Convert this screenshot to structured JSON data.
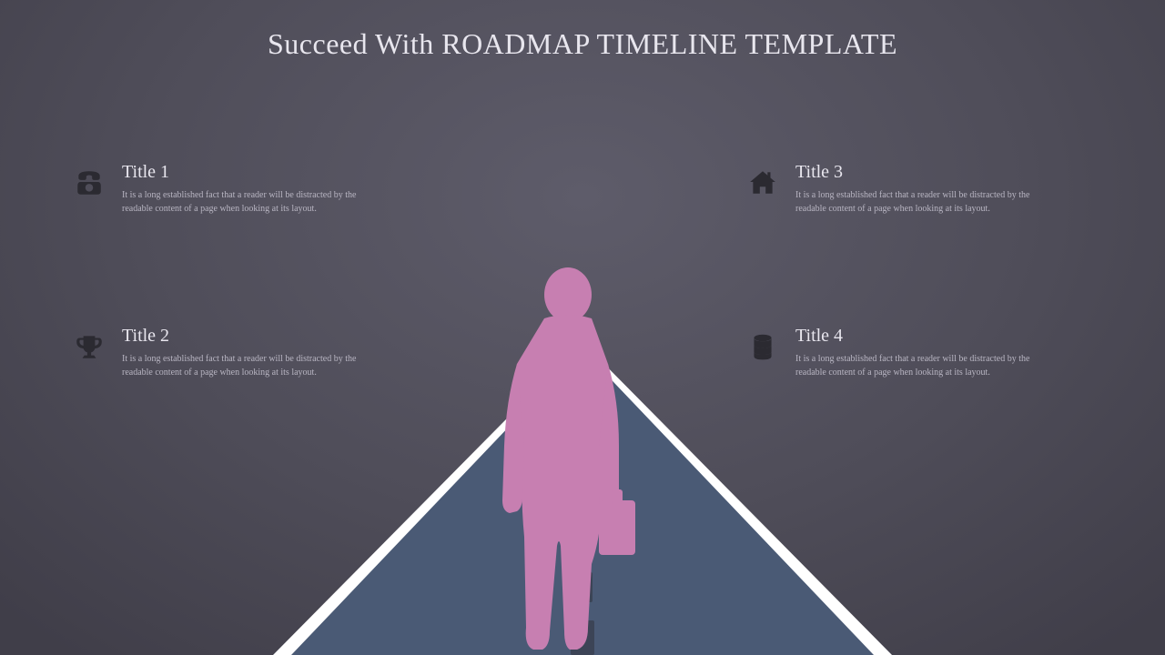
{
  "slide": {
    "title": "Succeed With ROADMAP TIMELINE TEMPLATE",
    "background": {
      "center": "#5e5c6a",
      "mid": "#4f4d59",
      "edge": "#403e49"
    },
    "title_color": "#e8e6ee",
    "title_fontsize": 32
  },
  "road": {
    "fill": "#4a5a75",
    "edge_color": "#ffffff",
    "dash_color": "#3c4456",
    "dash_count": 6
  },
  "silhouette": {
    "fill": "#c77fb1"
  },
  "icons": {
    "fill": "#2b2a31"
  },
  "items": [
    {
      "icon": "phone",
      "title": "Title 1",
      "desc": "It is a long established fact that a reader will be distracted by the readable content of a page when looking at its layout."
    },
    {
      "icon": "trophy",
      "title": "Title 2",
      "desc": "It is a long established fact that a reader will be distracted by the readable content of a page when looking at its layout."
    },
    {
      "icon": "home",
      "title": "Title 3",
      "desc": "It is a long established fact that a reader will be distracted by the readable content of a page when looking at its layout."
    },
    {
      "icon": "database",
      "title": "Title 4",
      "desc": "It is a long established fact that a reader will be distracted by the readable content of a page when looking at its layout."
    }
  ],
  "typography": {
    "item_title_fontsize": 20,
    "item_title_color": "#e8e6ee",
    "item_desc_fontsize": 10,
    "item_desc_color": "#b8b5c2",
    "font_family": "Georgia, serif"
  }
}
